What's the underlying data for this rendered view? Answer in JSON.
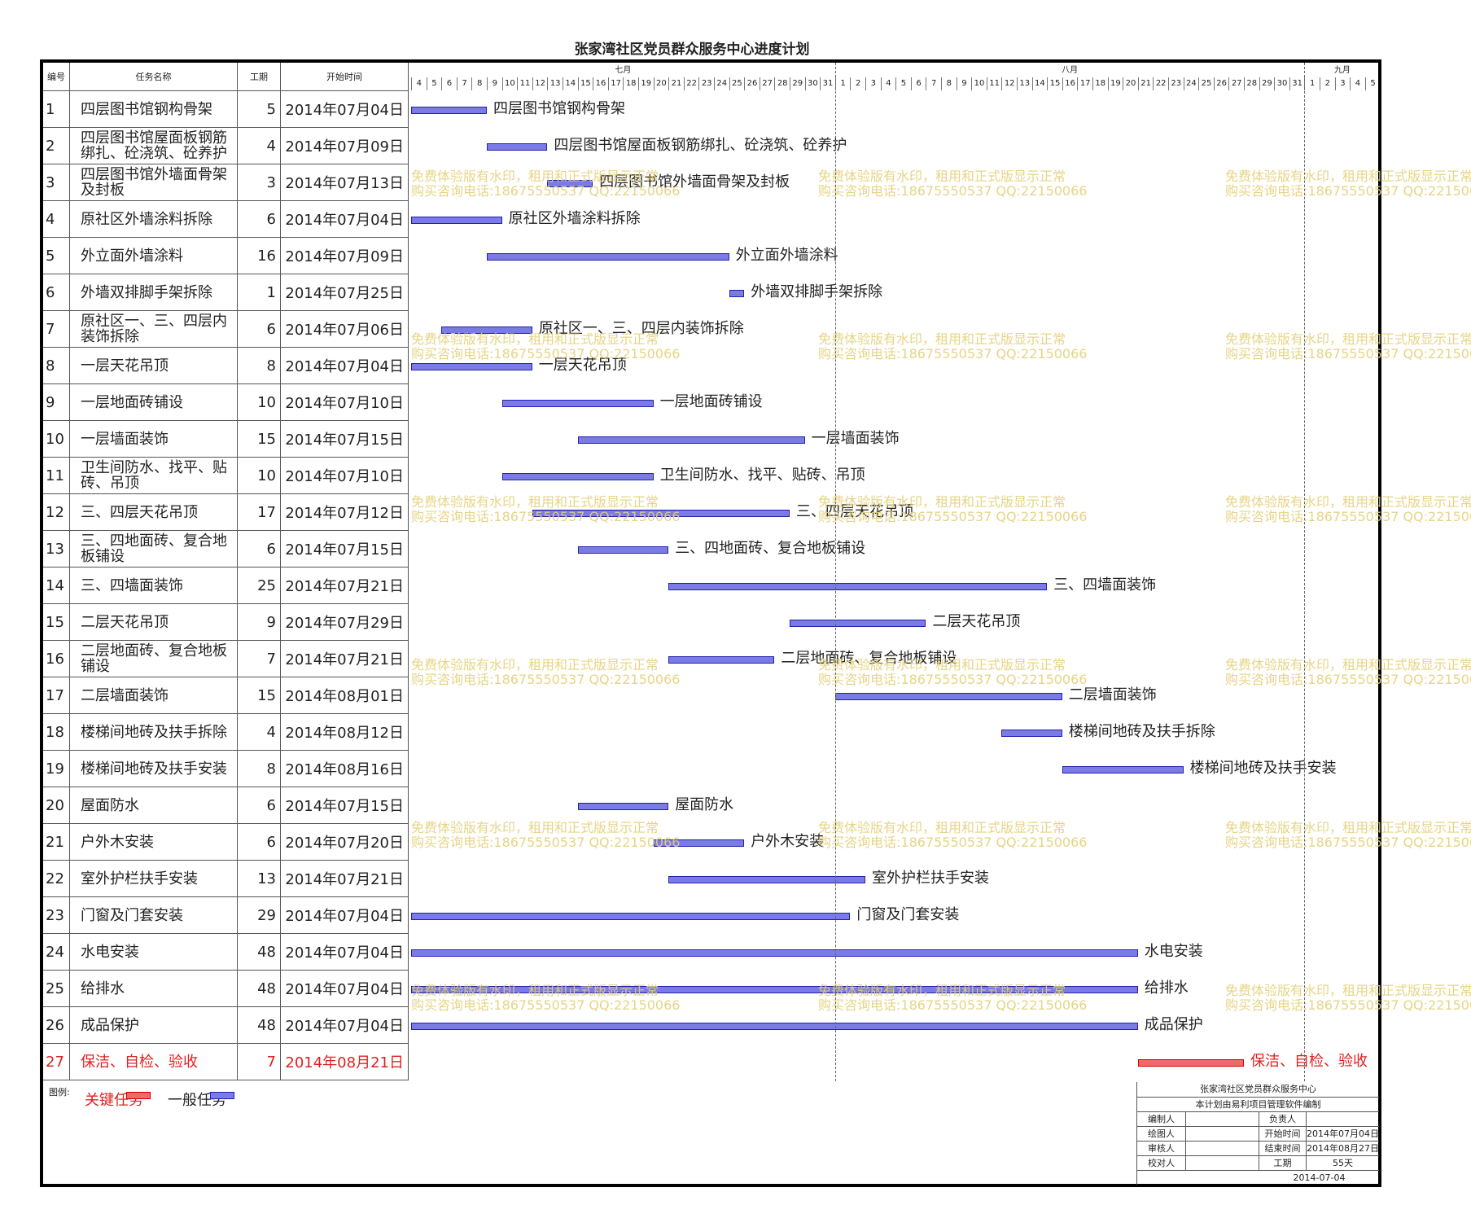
{
  "title": "张家湾社区党员群众服务中心进度计划",
  "headers": {
    "no": "编号",
    "name": "任务名称",
    "duration": "工期",
    "start": "开始时间"
  },
  "months": [
    {
      "label": "七月",
      "days": [
        4,
        5,
        6,
        7,
        8,
        9,
        10,
        11,
        12,
        13,
        14,
        15,
        16,
        17,
        18,
        19,
        20,
        21,
        22,
        23,
        24,
        25,
        26,
        27,
        28,
        29,
        30,
        31
      ]
    },
    {
      "label": "八月",
      "days": [
        1,
        2,
        3,
        4,
        5,
        6,
        7,
        8,
        9,
        10,
        11,
        12,
        13,
        14,
        15,
        16,
        17,
        18,
        19,
        20,
        21,
        22,
        23,
        24,
        25,
        26,
        27,
        28,
        29,
        30,
        31
      ]
    },
    {
      "label": "九月",
      "days": [
        1,
        2,
        3,
        4,
        5
      ]
    }
  ],
  "tasks": [
    {
      "no": "1",
      "name": "四层图书馆钢构骨架",
      "duration": "5",
      "start": "2014年07月04日",
      "offset": 0,
      "critical": false
    },
    {
      "no": "2",
      "name": "四层图书馆屋面板钢筋绑扎、砼浇筑、砼养护",
      "duration": "4",
      "start": "2014年07月09日",
      "offset": 5,
      "critical": false
    },
    {
      "no": "3",
      "name": "四层图书馆外墙面骨架及封板",
      "duration": "3",
      "start": "2014年07月13日",
      "offset": 9,
      "critical": false
    },
    {
      "no": "4",
      "name": "原社区外墙涂料拆除",
      "duration": "6",
      "start": "2014年07月04日",
      "offset": 0,
      "critical": false
    },
    {
      "no": "5",
      "name": "外立面外墙涂料",
      "duration": "16",
      "start": "2014年07月09日",
      "offset": 5,
      "critical": false
    },
    {
      "no": "6",
      "name": "外墙双排脚手架拆除",
      "duration": "1",
      "start": "2014年07月25日",
      "offset": 21,
      "critical": false
    },
    {
      "no": "7",
      "name": "原社区一、三、四层内装饰拆除",
      "duration": "6",
      "start": "2014年07月06日",
      "offset": 2,
      "critical": false
    },
    {
      "no": "8",
      "name": "一层天花吊顶",
      "duration": "8",
      "start": "2014年07月04日",
      "offset": 0,
      "critical": false
    },
    {
      "no": "9",
      "name": "一层地面砖铺设",
      "duration": "10",
      "start": "2014年07月10日",
      "offset": 6,
      "critical": false
    },
    {
      "no": "10",
      "name": "一层墙面装饰",
      "duration": "15",
      "start": "2014年07月15日",
      "offset": 11,
      "critical": false
    },
    {
      "no": "11",
      "name": "卫生间防水、找平、贴砖、吊顶",
      "duration": "10",
      "start": "2014年07月10日",
      "offset": 6,
      "critical": false
    },
    {
      "no": "12",
      "name": "三、四层天花吊顶",
      "duration": "17",
      "start": "2014年07月12日",
      "offset": 8,
      "critical": false
    },
    {
      "no": "13",
      "name": "三、四地面砖、复合地板铺设",
      "duration": "6",
      "start": "2014年07月15日",
      "offset": 11,
      "critical": false
    },
    {
      "no": "14",
      "name": "三、四墙面装饰",
      "duration": "25",
      "start": "2014年07月21日",
      "offset": 17,
      "critical": false
    },
    {
      "no": "15",
      "name": "二层天花吊顶",
      "duration": "9",
      "start": "2014年07月29日",
      "offset": 25,
      "critical": false
    },
    {
      "no": "16",
      "name": "二层地面砖、复合地板铺设",
      "duration": "7",
      "start": "2014年07月21日",
      "offset": 17,
      "critical": false
    },
    {
      "no": "17",
      "name": "二层墙面装饰",
      "duration": "15",
      "start": "2014年08月01日",
      "offset": 28,
      "critical": false
    },
    {
      "no": "18",
      "name": "楼梯间地砖及扶手拆除",
      "duration": "4",
      "start": "2014年08月12日",
      "offset": 39,
      "critical": false
    },
    {
      "no": "19",
      "name": "楼梯间地砖及扶手安装",
      "duration": "8",
      "start": "2014年08月16日",
      "offset": 43,
      "critical": false
    },
    {
      "no": "20",
      "name": "屋面防水",
      "duration": "6",
      "start": "2014年07月15日",
      "offset": 11,
      "critical": false
    },
    {
      "no": "21",
      "name": "户外木安装",
      "duration": "6",
      "start": "2014年07月20日",
      "offset": 16,
      "critical": false
    },
    {
      "no": "22",
      "name": "室外护栏扶手安装",
      "duration": "13",
      "start": "2014年07月21日",
      "offset": 17,
      "critical": false
    },
    {
      "no": "23",
      "name": "门窗及门套安装",
      "duration": "29",
      "start": "2014年07月04日",
      "offset": 0,
      "critical": false
    },
    {
      "no": "24",
      "name": "水电安装",
      "duration": "48",
      "start": "2014年07月04日",
      "offset": 0,
      "critical": false
    },
    {
      "no": "25",
      "name": "给排水",
      "duration": "48",
      "start": "2014年07月04日",
      "offset": 0,
      "critical": false
    },
    {
      "no": "26",
      "name": "成品保护",
      "duration": "48",
      "start": "2014年07月04日",
      "offset": 0,
      "critical": false
    },
    {
      "no": "27",
      "name": "保洁、自检、验收",
      "duration": "7",
      "start": "2014年08月21日",
      "offset": 48,
      "critical": true
    }
  ],
  "legend": {
    "label": "图例:",
    "critical": "关键任务",
    "normal": "一般任务"
  },
  "watermark": {
    "line1": "免费体验版有水印，租用和正式版显示正常",
    "line2": "购买咨询电话:18675550537 QQ:22150066"
  },
  "info": {
    "org": "张家湾社区党员群众服务中心",
    "note": "本计划由易利项目管理软件编制",
    "compiler_label": "编制人",
    "owner_label": "负责人",
    "drawer_label": "绘图人",
    "start_label": "开始时间",
    "start_value": "2014年07月04日",
    "reviewer_label": "审核人",
    "end_label": "结束时间",
    "end_value": "2014年08月27日",
    "checker_label": "校对人",
    "duration_label": "工期",
    "duration_value": "55天",
    "date": "2014-07-04"
  },
  "colors": {
    "normal_bar": "#7b7be8",
    "critical_bar": "#f06a6a",
    "critical_text": "#e02020",
    "watermark": "#e4d07a"
  }
}
